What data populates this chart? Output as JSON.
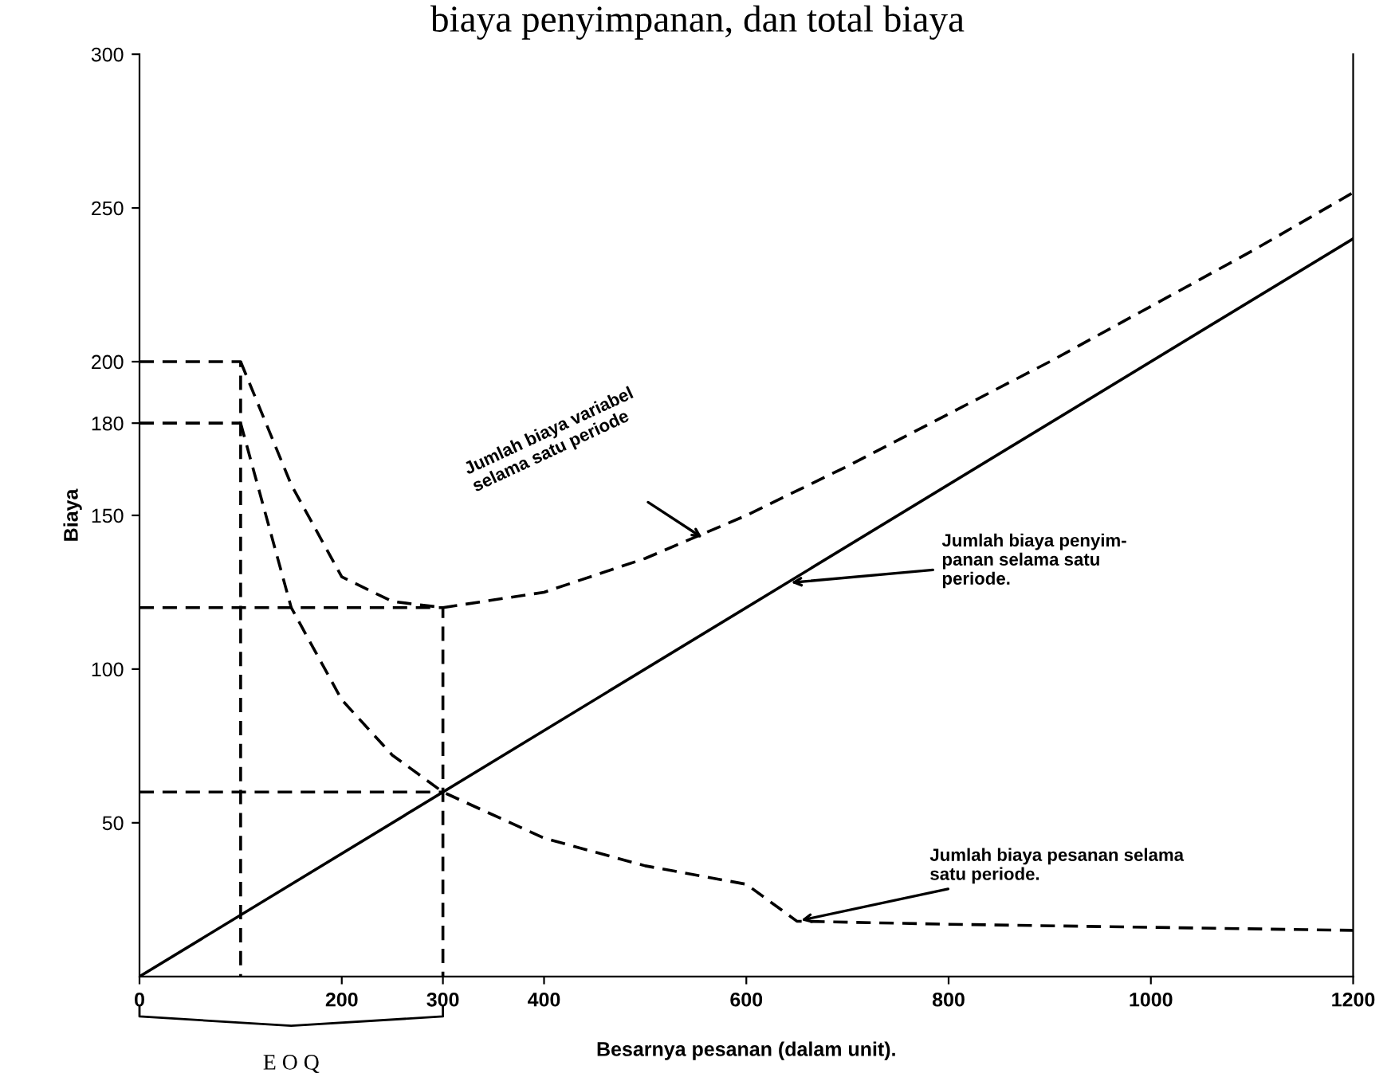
{
  "chart_data": {
    "type": "line",
    "title": "biaya penyimpanan, dan total biaya",
    "xlabel": "Besarnya pesanan (dalam unit).",
    "ylabel": "Biaya",
    "xlim": [
      0,
      1200
    ],
    "ylim": [
      0,
      300
    ],
    "xticks": [
      0,
      200,
      300,
      400,
      600,
      800,
      1000,
      1200
    ],
    "yticks": [
      50,
      100,
      150,
      {
        "value": 180,
        "label": "180"
      },
      200,
      250,
      300
    ],
    "marker": "none",
    "series": [
      {
        "color": "#000000",
        "line_style": "dashed",
        "x": [
          100,
          150,
          200,
          250,
          300,
          400,
          500,
          600,
          700,
          800,
          900,
          1000,
          1100,
          1200
        ],
        "values": [
          200,
          160,
          130,
          122,
          120,
          125,
          136,
          150,
          166,
          183,
          200,
          218,
          236,
          255
        ]
      },
      {
        "color": "#000000",
        "line_style": "solid",
        "x": [
          0,
          1200
        ],
        "values": [
          0,
          240
        ]
      },
      {
        "color": "#000000",
        "line_style": "dashed",
        "x": [
          100,
          150,
          200,
          250,
          300,
          400,
          500,
          600,
          650,
          800,
          1000,
          1200
        ],
        "values": [
          180,
          120,
          90,
          72,
          60,
          45,
          36,
          30,
          18,
          17,
          16,
          15
        ]
      },
      {
        "color": "#000000",
        "line_style": "dashed",
        "x": [
          0,
          100,
          100
        ],
        "values": [
          200,
          200,
          0
        ]
      },
      {
        "color": "#000000",
        "line_style": "dashed",
        "x": [
          0,
          100
        ],
        "values": [
          180,
          180
        ]
      },
      {
        "color": "#000000",
        "line_style": "dashed",
        "x": [
          0,
          300,
          300
        ],
        "values": [
          120,
          120,
          0
        ]
      },
      {
        "color": "#000000",
        "line_style": "dashed",
        "x": [
          0,
          300
        ],
        "values": [
          60,
          60
        ]
      }
    ],
    "annotations": [
      {
        "text": "Jumlah biaya variabel\nselama satu periode",
        "x": 560,
        "y": 142
      },
      {
        "text": "Jumlah biaya penyim-\npanan selama satu\nperiode.",
        "x": 640,
        "y": 128
      },
      {
        "text": "Jumlah biaya pesanan selama\nsatu periode.",
        "x": 650,
        "y": 18
      },
      "E O Q"
    ]
  }
}
